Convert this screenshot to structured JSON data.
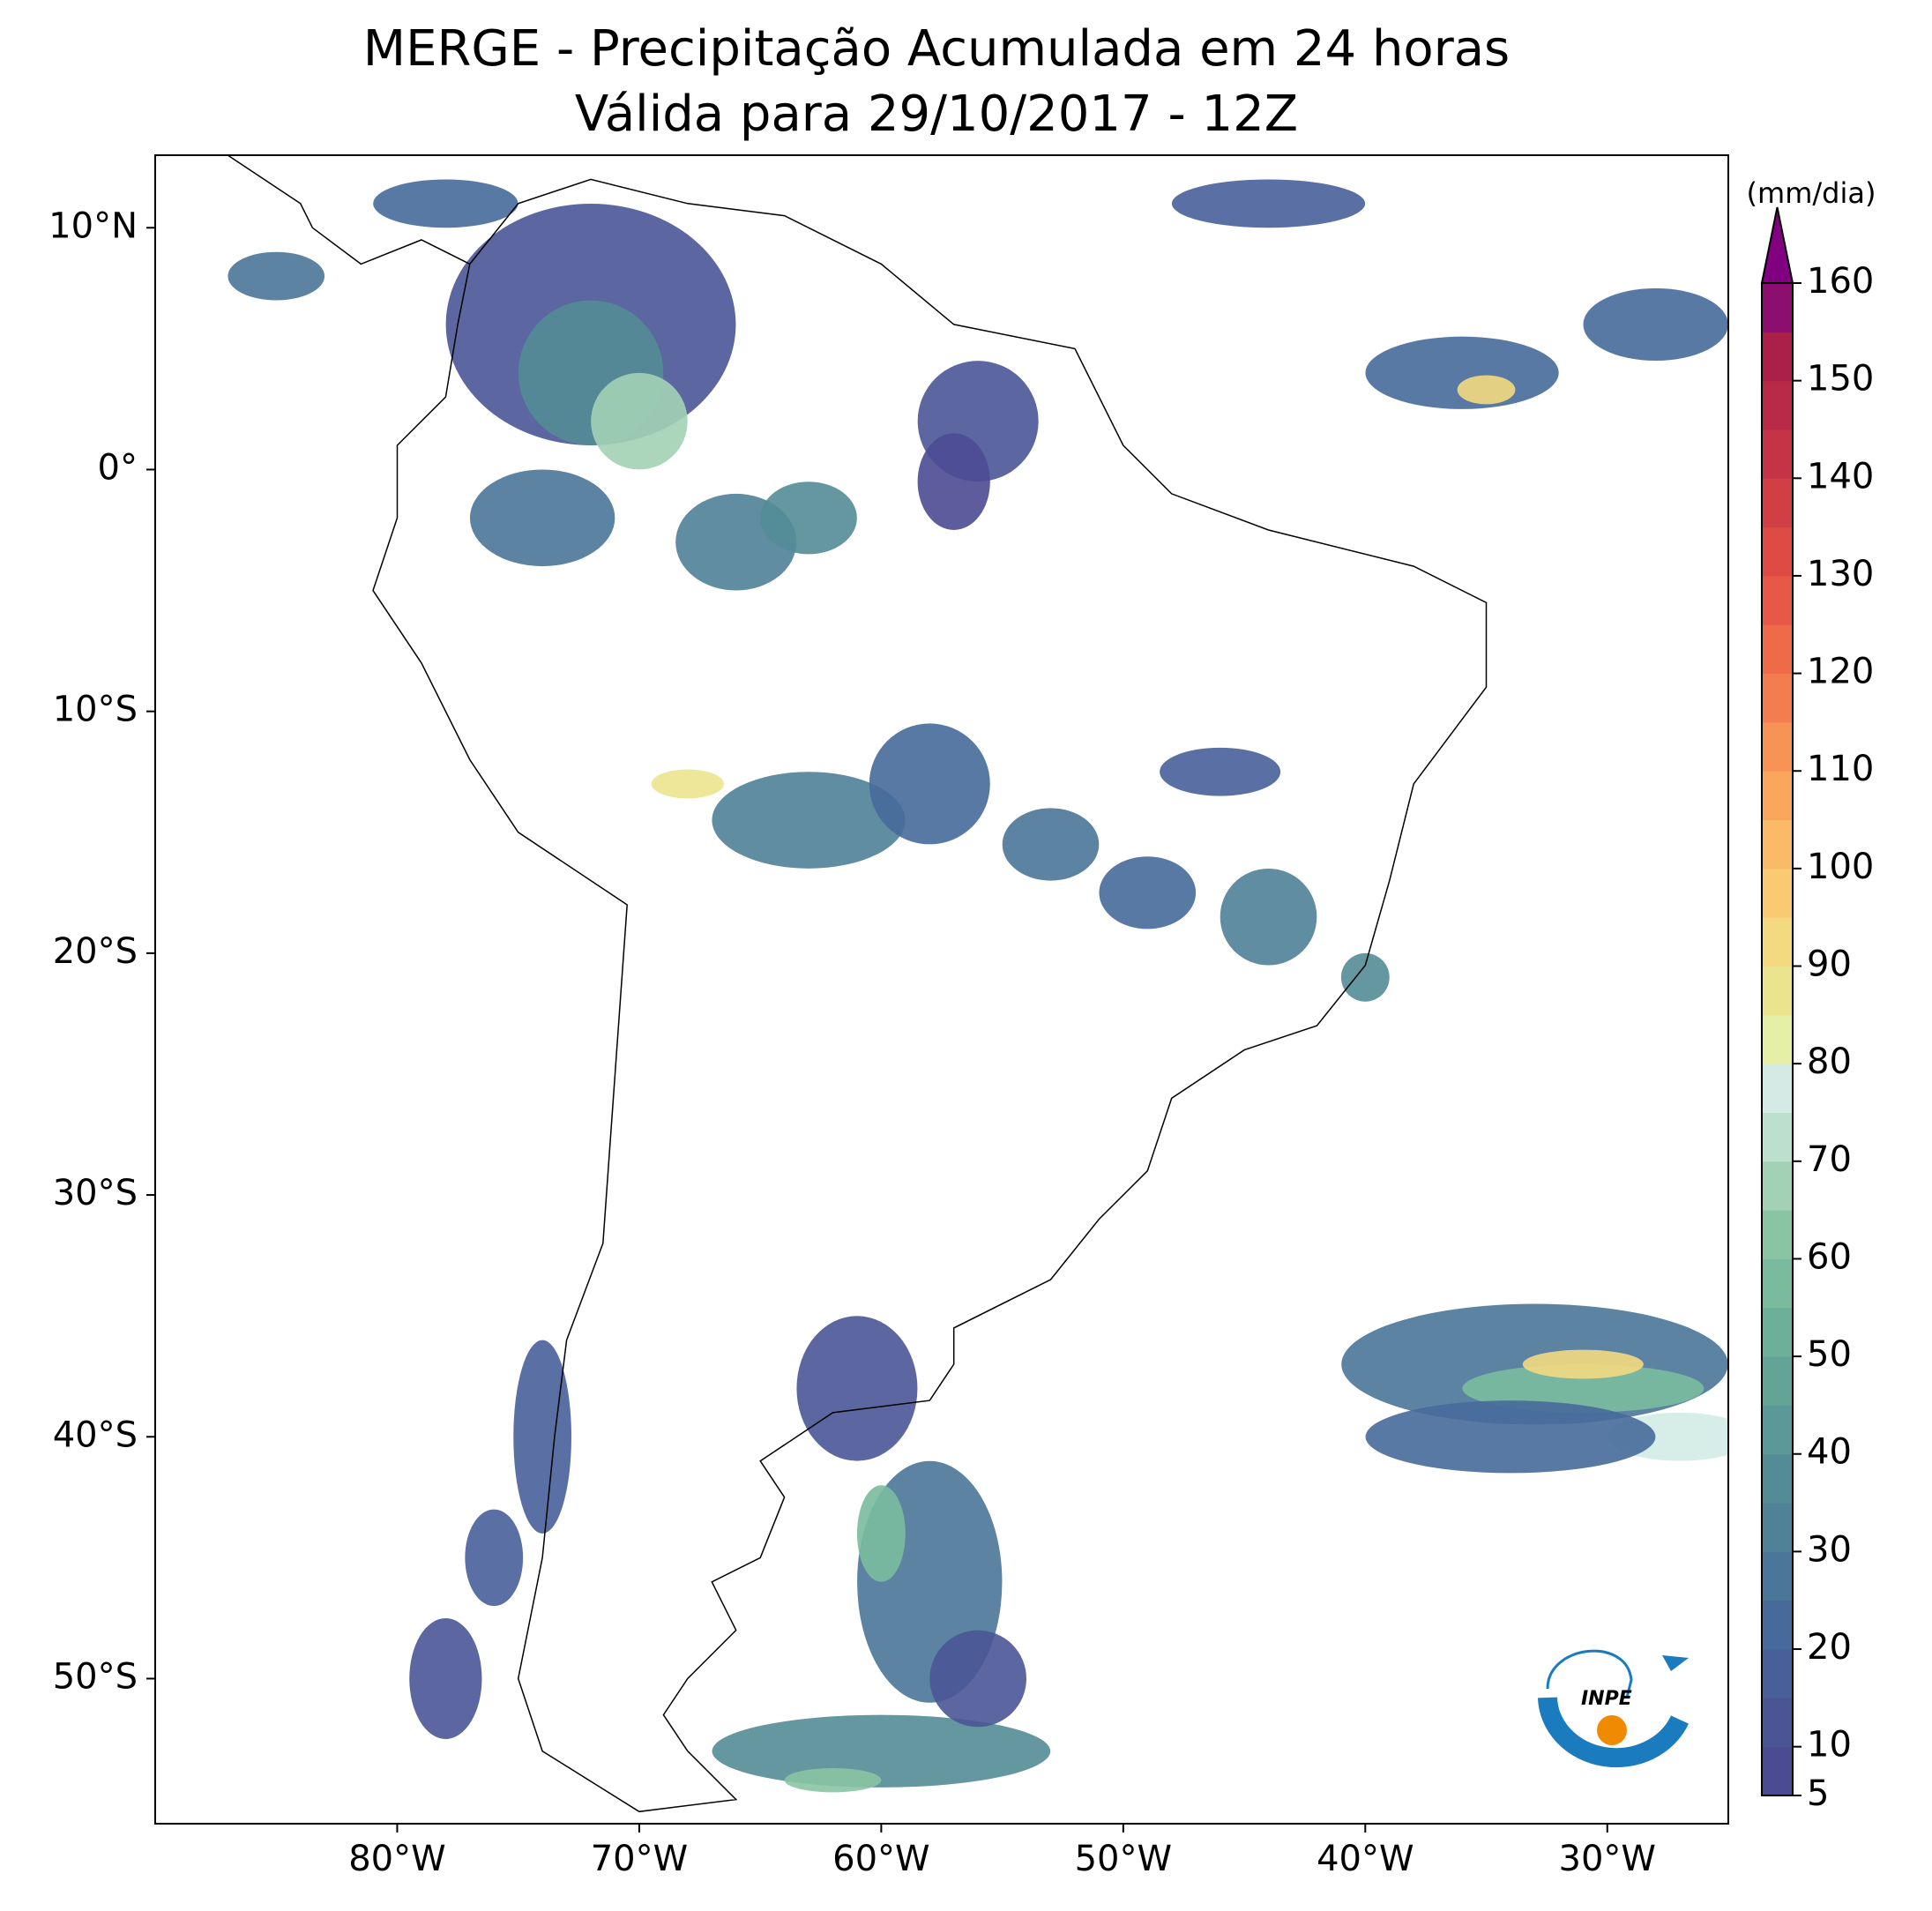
{
  "title": [
    "MERGE - Precipitação Acumulada em 24 horas",
    "Válida para 29/10/2017 - 12Z"
  ],
  "map": {
    "xlim": [
      -90,
      -25
    ],
    "ylim": [
      -56,
      13
    ],
    "lon_ticks": [
      {
        "value": -80,
        "label": "80°W"
      },
      {
        "value": -70,
        "label": "70°W"
      },
      {
        "value": -60,
        "label": "60°W"
      },
      {
        "value": -50,
        "label": "50°W"
      },
      {
        "value": -40,
        "label": "40°W"
      },
      {
        "value": -30,
        "label": "30°W"
      }
    ],
    "lat_ticks": [
      {
        "value": 10,
        "label": "10°N"
      },
      {
        "value": 0,
        "label": "0°"
      },
      {
        "value": -10,
        "label": "10°S"
      },
      {
        "value": -20,
        "label": "20°S"
      },
      {
        "value": -30,
        "label": "30°S"
      },
      {
        "value": -40,
        "label": "40°S"
      },
      {
        "value": -50,
        "label": "50°S"
      }
    ]
  },
  "colorbar": {
    "unit": "(mm/dia)",
    "lim": [
      5,
      160
    ],
    "ticks": [
      5,
      10,
      20,
      30,
      40,
      50,
      60,
      70,
      80,
      90,
      100,
      110,
      120,
      130,
      140,
      150,
      160
    ],
    "colors": [
      "#4b4b93",
      "#4a5596",
      "#485f99",
      "#476a9b",
      "#4b7599",
      "#4f8197",
      "#538c96",
      "#5b9897",
      "#63a497",
      "#6cb09a",
      "#7abb9e",
      "#89c4a3",
      "#a3d1b5",
      "#bcdfce",
      "#d3ebe4",
      "#e6efa6",
      "#ece38e",
      "#f3d97f",
      "#f9ca72",
      "#fbba67",
      "#faa65d",
      "#f89356",
      "#f47d4f",
      "#ee6a48",
      "#e75946",
      "#de4b44",
      "#d13f45",
      "#c53347",
      "#b82a48",
      "#ab2049",
      "#8c0e6e"
    ],
    "extend_color": "#800080"
  },
  "logo": {
    "text": "INPE"
  }
}
